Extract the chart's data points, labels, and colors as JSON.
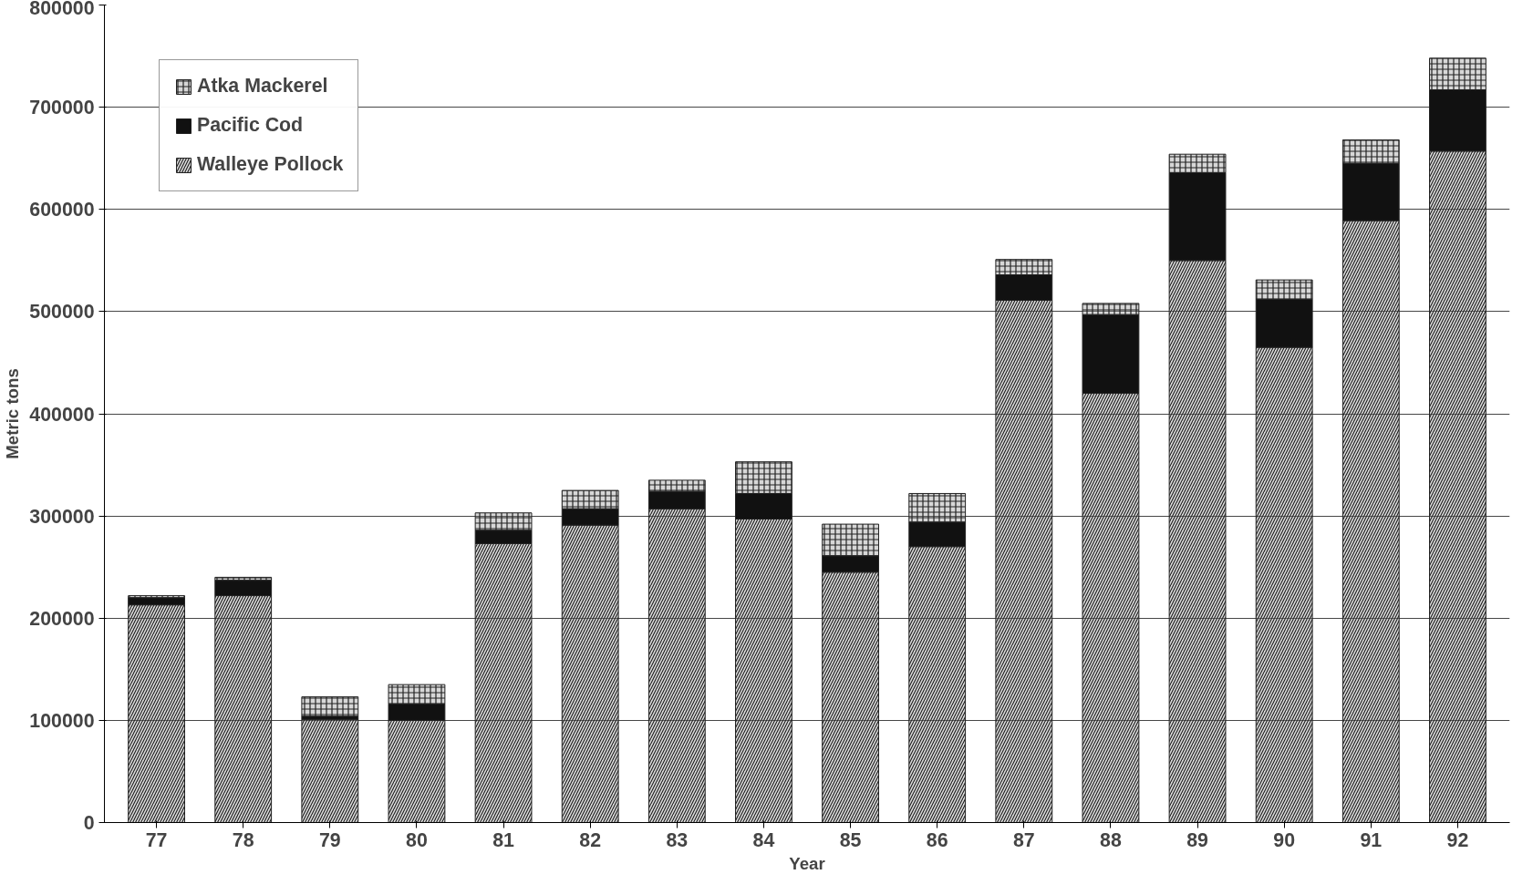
{
  "chart_data": {
    "type": "bar",
    "stacked": true,
    "xlabel": "Year",
    "ylabel": "Metric tons",
    "categories": [
      "77",
      "78",
      "79",
      "80",
      "81",
      "82",
      "83",
      "84",
      "85",
      "86",
      "87",
      "88",
      "89",
      "90",
      "91",
      "92"
    ],
    "series": [
      {
        "name": "Walleye Pollock",
        "color": "#9a9a9a",
        "values": [
          213000,
          222000,
          101000,
          100000,
          273000,
          291000,
          307000,
          297000,
          245000,
          270000,
          511000,
          420000,
          550000,
          465000,
          589000,
          657000
        ]
      },
      {
        "name": "Pacific Cod",
        "color": "#111111",
        "values": [
          7000,
          15000,
          3000,
          16000,
          13000,
          16000,
          17000,
          25000,
          16000,
          24000,
          25000,
          77000,
          86000,
          47000,
          56000,
          60000
        ]
      },
      {
        "name": "Atka Mackerel",
        "color": "#8c8c8c",
        "values": [
          2000,
          3000,
          19000,
          19000,
          17000,
          18000,
          11000,
          31000,
          31000,
          28000,
          15000,
          11000,
          18000,
          19000,
          23000,
          31000
        ]
      }
    ],
    "ylim": [
      0,
      800000
    ],
    "yticks": [
      0,
      100000,
      200000,
      300000,
      400000,
      500000,
      600000,
      700000,
      800000
    ],
    "grid": "y",
    "legend": "top left"
  }
}
